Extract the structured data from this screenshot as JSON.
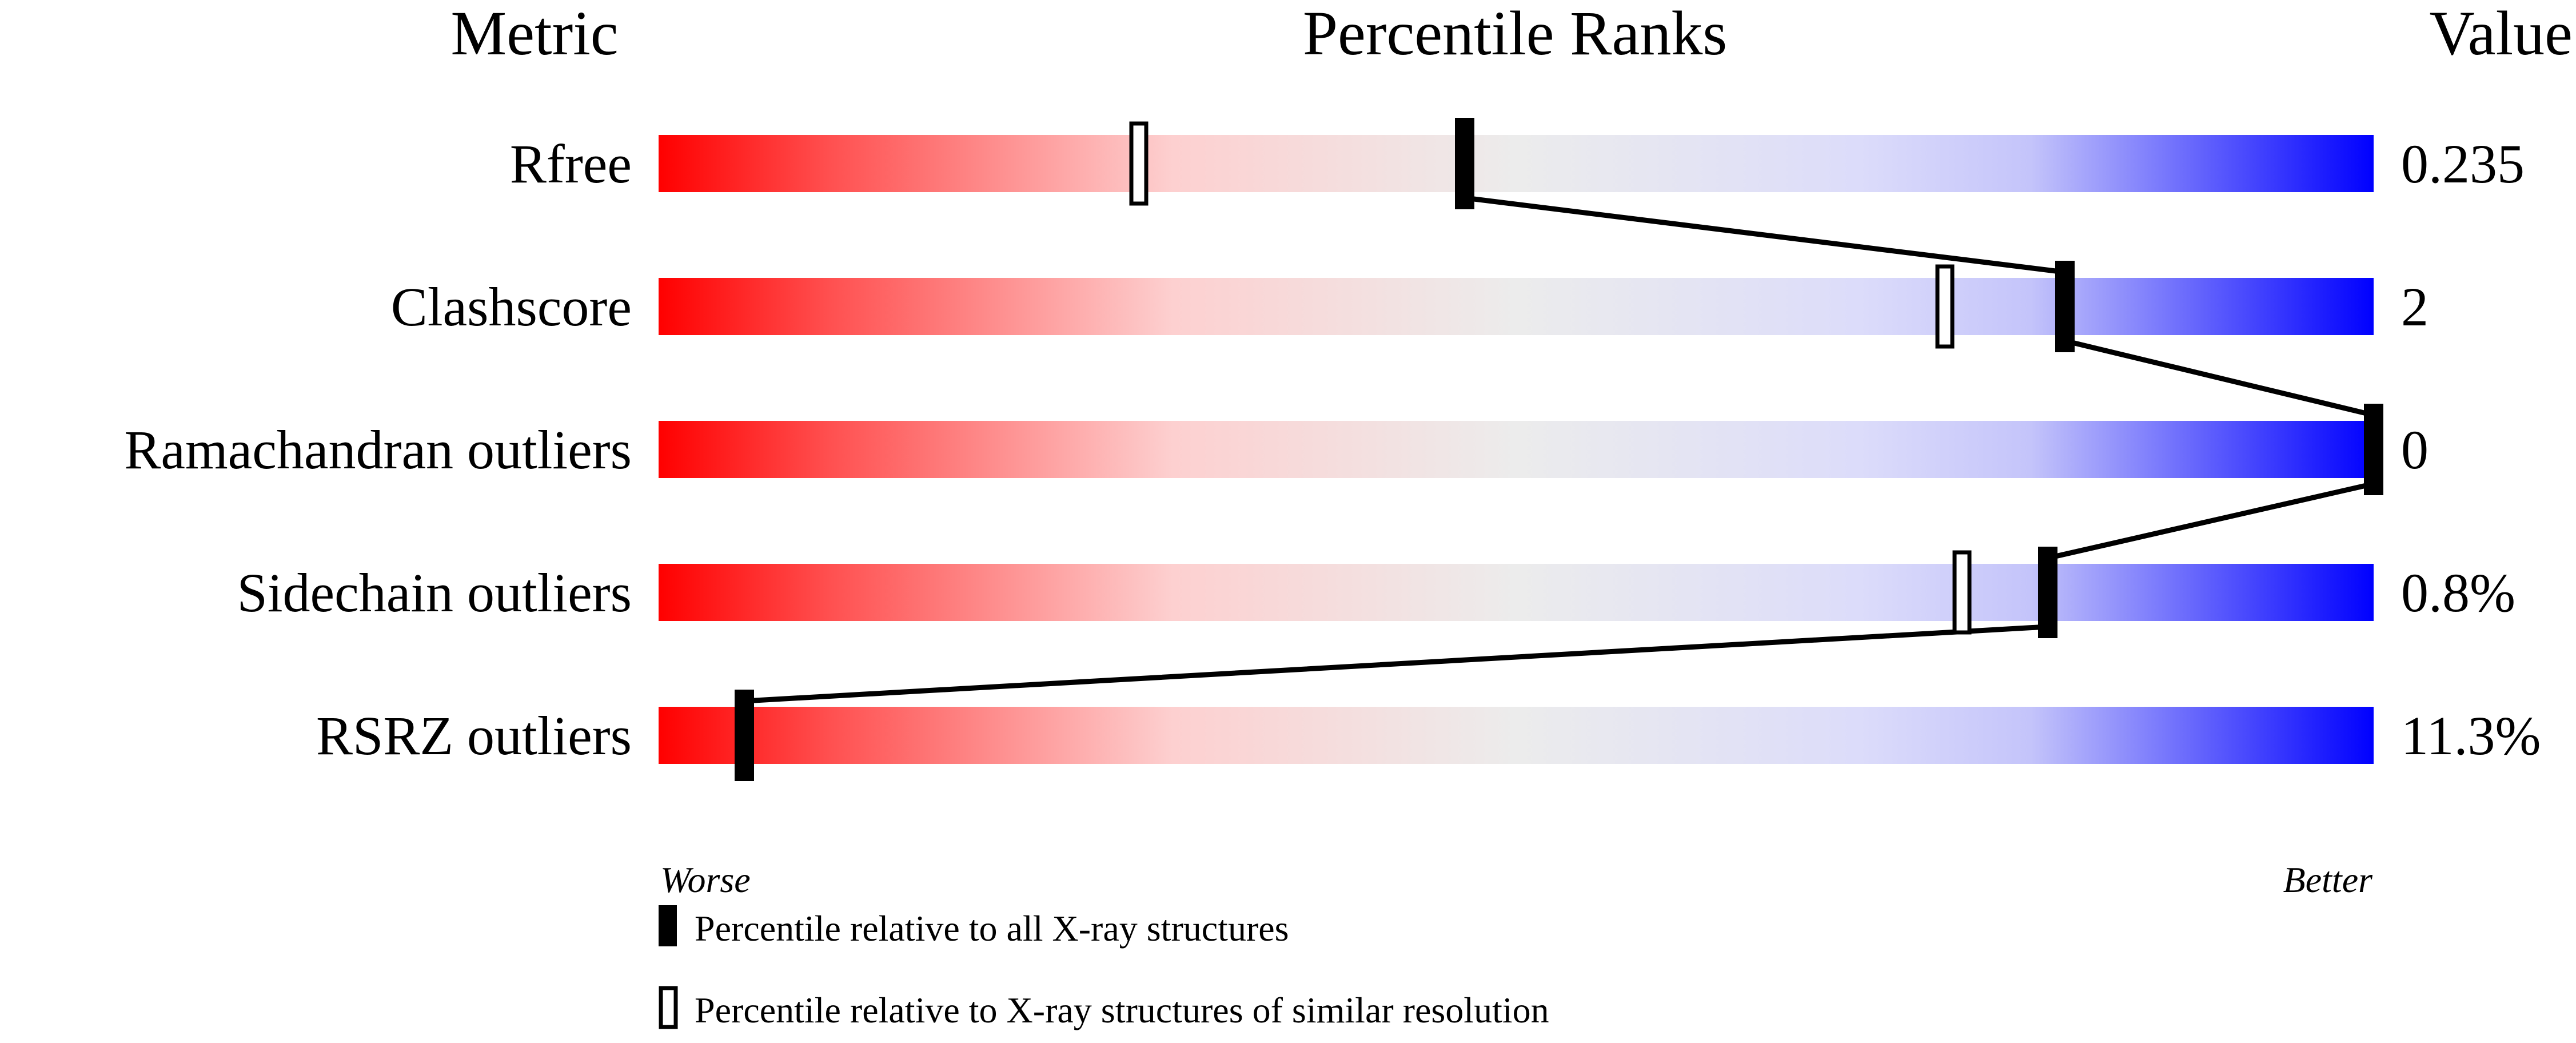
{
  "chart_data": {
    "type": "percentile-slider",
    "headers": {
      "metric": "Metric",
      "ranks": "Percentile Ranks",
      "value": "Value"
    },
    "xlim": [
      0,
      100
    ],
    "scale_labels": {
      "low": "Worse",
      "high": "Better"
    },
    "colors": {
      "worse": "#ff0000",
      "mid": "#eeeeee",
      "better": "#0000ff",
      "marker": "#000000"
    },
    "metrics": [
      {
        "label": "Rfree",
        "value": "0.235",
        "percentile_all": 47,
        "percentile_similar": 28
      },
      {
        "label": "Clashscore",
        "value": "2",
        "percentile_all": 82,
        "percentile_similar": 75
      },
      {
        "label": "Ramachandran outliers",
        "value": "0",
        "percentile_all": 100,
        "percentile_similar": null
      },
      {
        "label": "Sidechain outliers",
        "value": "0.8%",
        "percentile_all": 81,
        "percentile_similar": 76
      },
      {
        "label": "RSRZ outliers",
        "value": "11.3%",
        "percentile_all": 5,
        "percentile_similar": null
      }
    ],
    "legend": [
      {
        "marker": "filled",
        "label": "Percentile relative to all X-ray structures"
      },
      {
        "marker": "open",
        "label": "Percentile relative to X-ray structures of similar resolution"
      }
    ]
  }
}
